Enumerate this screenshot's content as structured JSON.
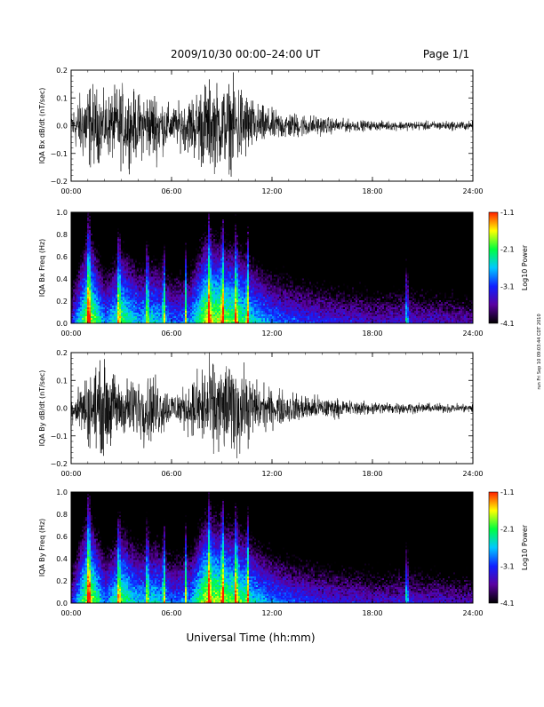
{
  "header": {
    "title": "2009/10/30   00:00–24:00 UT",
    "page": "Page 1/1"
  },
  "footer": {
    "xlabel": "Universal Time (hh:mm)",
    "side_note": "run Fri Sep 10 09:03:44 CDT 2010"
  },
  "x_axis": {
    "ticks": [
      "00:00",
      "06:00",
      "12:00",
      "18:00",
      "24:00"
    ],
    "xlim": [
      0,
      24
    ],
    "unit": "hours UT"
  },
  "colorbar": {
    "label": "Log10 Power",
    "ticks": [
      "-1.1",
      "-2.1",
      "-3.1",
      "-4.1"
    ],
    "range": [
      -4.1,
      -1.1
    ],
    "colormap": [
      "#000000",
      "#5a00a0",
      "#1020ff",
      "#00c8ff",
      "#00ff40",
      "#ffff00",
      "#ff2000"
    ]
  },
  "chart_data": [
    {
      "type": "line",
      "title": "",
      "ylabel": "IQA Bx dB/dt (nT/sec)",
      "xlabel": "",
      "ylim": [
        -0.2,
        0.2
      ],
      "yticks": [
        "0.2",
        "0.1",
        "0.0",
        "−0.1",
        "−0.2"
      ],
      "series": [
        {
          "color": "#000000",
          "x": [
            0,
            1,
            2,
            3,
            4,
            5,
            6,
            7,
            8,
            9,
            10,
            11,
            12,
            13,
            14,
            15,
            16,
            17,
            18,
            19,
            20,
            21,
            22,
            23,
            24
          ],
          "envelope": [
            0.07,
            0.2,
            0.13,
            0.18,
            0.14,
            0.16,
            0.08,
            0.12,
            0.2,
            0.18,
            0.2,
            0.1,
            0.07,
            0.06,
            0.05,
            0.04,
            0.03,
            0.025,
            0.02,
            0.02,
            0.02,
            0.02,
            0.02,
            0.02,
            0.02
          ]
        }
      ]
    },
    {
      "type": "heatmap",
      "title": "",
      "ylabel": "IQA Bx Freq (Hz)",
      "xlabel": "",
      "ylim": [
        0.0,
        1.0
      ],
      "yticks": [
        "1.0",
        "0.8",
        "0.6",
        "0.4",
        "0.2",
        "0.0"
      ],
      "colorbar_range": [
        -4.1,
        -1.1
      ],
      "bursts_hours": [
        1.0,
        2.8,
        4.5,
        5.5,
        6.8,
        8.2,
        9.0,
        9.8,
        10.5,
        20.0
      ],
      "low_freq_power": [
        -3.2,
        -1.5,
        -2.8,
        -2.0,
        -2.6,
        -2.4,
        -2.9,
        -2.8,
        -1.6,
        -1.8,
        -2.0,
        -2.5,
        -2.8,
        -3.0,
        -3.1,
        -3.2,
        -3.3,
        -3.3,
        -3.4,
        -3.4,
        -3.3,
        -3.4,
        -3.4,
        -3.5
      ]
    },
    {
      "type": "line",
      "title": "",
      "ylabel": "IQA By dB/dt (nT/sec)",
      "xlabel": "",
      "ylim": [
        -0.2,
        0.2
      ],
      "yticks": [
        "0.2",
        "0.1",
        "0.0",
        "−0.1",
        "−0.2"
      ],
      "series": [
        {
          "color": "#000000",
          "x": [
            0,
            1,
            2,
            3,
            4,
            5,
            6,
            7,
            8,
            9,
            10,
            11,
            12,
            13,
            14,
            15,
            16,
            17,
            18,
            19,
            20,
            21,
            22,
            23,
            24
          ],
          "envelope": [
            0.05,
            0.16,
            0.2,
            0.12,
            0.14,
            0.15,
            0.07,
            0.1,
            0.2,
            0.2,
            0.2,
            0.12,
            0.08,
            0.07,
            0.06,
            0.05,
            0.04,
            0.03,
            0.03,
            0.025,
            0.025,
            0.02,
            0.02,
            0.02,
            0.02
          ]
        }
      ]
    },
    {
      "type": "heatmap",
      "title": "",
      "ylabel": "IQA By Freq (Hz)",
      "xlabel": "",
      "ylim": [
        0.0,
        1.0
      ],
      "yticks": [
        "1.0",
        "0.8",
        "0.6",
        "0.4",
        "0.2",
        "0.0"
      ],
      "colorbar_range": [
        -4.1,
        -1.1
      ],
      "bursts_hours": [
        1.0,
        2.8,
        4.5,
        5.5,
        6.8,
        8.2,
        9.0,
        9.8,
        10.5,
        20.0
      ],
      "low_freq_power": [
        -3.2,
        -1.5,
        -2.8,
        -2.0,
        -2.6,
        -2.4,
        -2.9,
        -2.8,
        -1.6,
        -1.8,
        -2.0,
        -2.5,
        -2.8,
        -3.0,
        -3.1,
        -3.2,
        -3.3,
        -3.3,
        -3.4,
        -3.4,
        -3.3,
        -3.4,
        -3.4,
        -3.5
      ]
    }
  ]
}
